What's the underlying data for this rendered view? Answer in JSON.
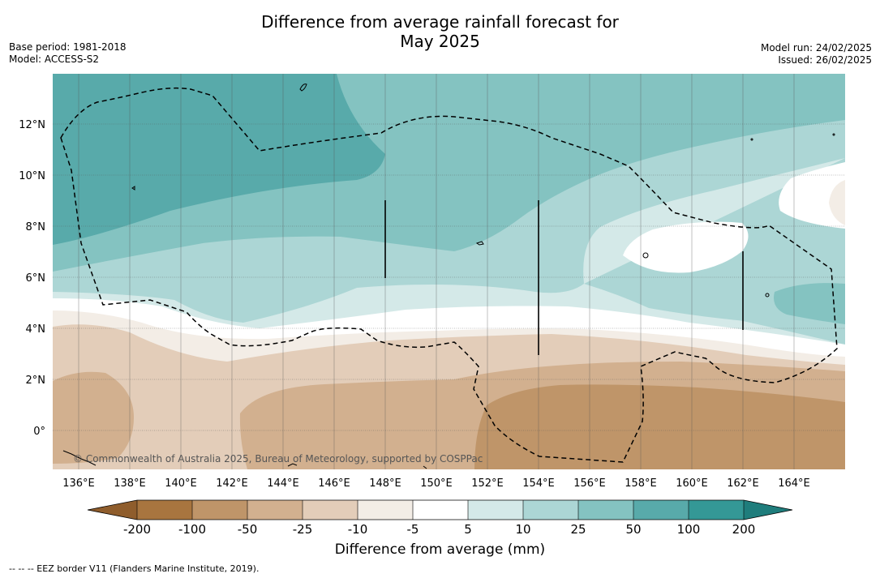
{
  "title": {
    "line1": "Difference from average rainfall forecast for",
    "line2": "May 2025"
  },
  "meta": {
    "base_period": "Base period: 1981-2018",
    "model": "Model: ACCESS-S2",
    "model_run": "Model run: 24/02/2025",
    "issued": "Issued: 26/02/2025"
  },
  "map": {
    "x_ticks": [
      "136°E",
      "138°E",
      "140°E",
      "142°E",
      "144°E",
      "146°E",
      "148°E",
      "150°E",
      "152°E",
      "154°E",
      "156°E",
      "158°E",
      "160°E",
      "162°E",
      "164°E"
    ],
    "y_ticks": [
      "12°N",
      "10°N",
      "8°N",
      "6°N",
      "4°N",
      "2°N",
      "0°"
    ],
    "copyright": "© Commonwealth of Australia 2025, Bureau of Meteorology, supported by COSPPac",
    "lon_range": [
      135,
      166
    ],
    "lat_range": [
      -1.5,
      14
    ]
  },
  "legend": {
    "title": "Difference from average (mm)",
    "labels": [
      "-200",
      "-100",
      "-50",
      "-25",
      "-10",
      "-5",
      "5",
      "10",
      "25",
      "50",
      "100",
      "200"
    ],
    "colors": {
      "lt_neg200": "#8f5d2c",
      "neg200_neg100": "#a8753f",
      "neg100_neg50": "#bf9569",
      "neg50_neg25": "#d2b08f",
      "neg25_neg10": "#e3cdb9",
      "neg10_neg5": "#f3ede6",
      "neg5_5": "#ffffff",
      "5_10": "#d4e9e8",
      "10_25": "#acd6d5",
      "25_50": "#84c3c1",
      "50_100": "#58aaaa",
      "100_200": "#349896",
      "gt_200": "#1f7d7c"
    }
  },
  "footnote": "--  --  -- EEZ border V11 (Flanders Marine Institute, 2019)."
}
